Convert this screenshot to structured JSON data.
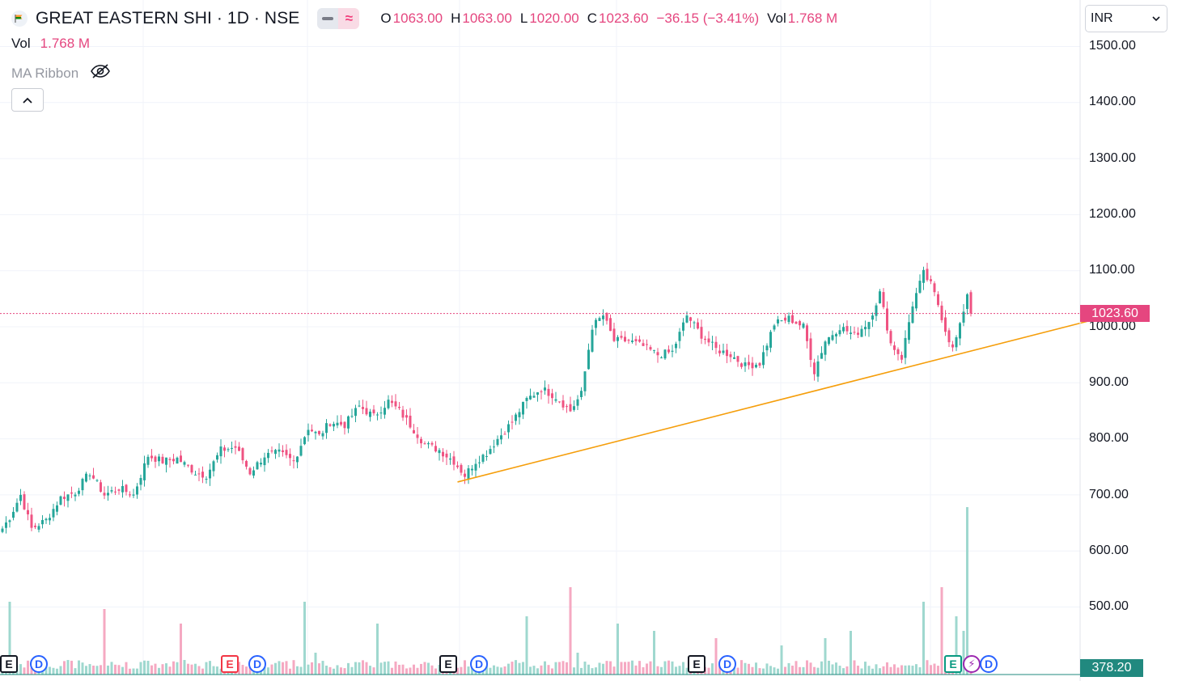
{
  "header": {
    "symbol_title": "GREAT EASTERN SHI · 1D · NSE",
    "open_label": "O",
    "open": "1063.00",
    "high_label": "H",
    "high": "1063.00",
    "low_label": "L",
    "low": "1020.00",
    "close_label": "C",
    "close": "1023.60",
    "change": "−36.15 (−3.41%)",
    "vol_label": "Vol",
    "vol": "1.768 M",
    "compare_icon": "minus-icon",
    "indicator_icon": "approx-icon"
  },
  "indicators": {
    "vol_label": "Vol",
    "vol_value": "1.768 M",
    "ma_ribbon_label": "MA Ribbon",
    "ma_ribbon_visibility_icon": "eye-off-icon",
    "collapse_icon": "chevron-up-icon"
  },
  "currency_select": {
    "value": "INR"
  },
  "price_axis": {
    "ticks": [
      "1500.00",
      "1400.00",
      "1300.00",
      "1200.00",
      "1100.00",
      "1000.00",
      "900.00",
      "800.00",
      "700.00",
      "600.00",
      "500.00"
    ],
    "last_price_tag": "1023.60",
    "volume_tag": "378.20"
  },
  "event_markers": [
    "E",
    "D",
    "E",
    "D",
    "E",
    "D",
    "E",
    "D",
    "E",
    "⚡",
    "D"
  ],
  "colors": {
    "up": "#26a69a",
    "down": "#ef5382",
    "trendline": "#f59e0b",
    "price_line": "#e5467f",
    "volume_up": "#9fd8cf",
    "volume_down": "#f5a9c2"
  },
  "chart_data": {
    "type": "candlestick",
    "title": "GREAT EASTERN SHI · 1D · NSE",
    "ylim": [
      440,
      1560
    ],
    "last_price": 1023.6,
    "close_anchors": [
      [
        0,
        640
      ],
      [
        2,
        660
      ],
      [
        5,
        700
      ],
      [
        8,
        640
      ],
      [
        12,
        655
      ],
      [
        16,
        695
      ],
      [
        20,
        705
      ],
      [
        24,
        740
      ],
      [
        28,
        700
      ],
      [
        32,
        712
      ],
      [
        36,
        700
      ],
      [
        40,
        770
      ],
      [
        44,
        760
      ],
      [
        48,
        765
      ],
      [
        53,
        740
      ],
      [
        56,
        735
      ],
      [
        60,
        780
      ],
      [
        64,
        785
      ],
      [
        68,
        740
      ],
      [
        72,
        770
      ],
      [
        76,
        775
      ],
      [
        80,
        760
      ],
      [
        84,
        820
      ],
      [
        87,
        805
      ],
      [
        90,
        830
      ],
      [
        94,
        825
      ],
      [
        98,
        858
      ],
      [
        102,
        840
      ],
      [
        106,
        867
      ],
      [
        109,
        850
      ],
      [
        112,
        825
      ],
      [
        116,
        790
      ],
      [
        120,
        780
      ],
      [
        124,
        760
      ],
      [
        127,
        735
      ],
      [
        130,
        760
      ],
      [
        133,
        775
      ],
      [
        136,
        800
      ],
      [
        140,
        830
      ],
      [
        144,
        870
      ],
      [
        148,
        890
      ],
      [
        152,
        875
      ],
      [
        156,
        850
      ],
      [
        159,
        880
      ],
      [
        162,
        1000
      ],
      [
        165,
        1020
      ],
      [
        168,
        975
      ],
      [
        172,
        975
      ],
      [
        176,
        965
      ],
      [
        180,
        950
      ],
      [
        184,
        955
      ],
      [
        188,
        1020
      ],
      [
        192,
        985
      ],
      [
        196,
        960
      ],
      [
        200,
        950
      ],
      [
        204,
        930
      ],
      [
        208,
        935
      ],
      [
        212,
        1005
      ],
      [
        216,
        1015
      ],
      [
        220,
        1000
      ],
      [
        223,
        920
      ],
      [
        226,
        975
      ],
      [
        230,
        1000
      ],
      [
        234,
        985
      ],
      [
        238,
        1010
      ],
      [
        241,
        1060
      ],
      [
        244,
        970
      ],
      [
        247,
        945
      ],
      [
        250,
        1040
      ],
      [
        253,
        1095
      ],
      [
        255,
        1075
      ],
      [
        257,
        1040
      ],
      [
        259,
        995
      ],
      [
        261,
        960
      ],
      [
        263,
        1000
      ],
      [
        265,
        1060
      ],
      [
        266,
        1023.6
      ]
    ],
    "volume_spikes": [
      [
        2,
        1
      ],
      [
        28,
        0.9
      ],
      [
        49,
        0.7
      ],
      [
        83,
        1
      ],
      [
        86,
        0.3
      ],
      [
        103,
        0.7
      ],
      [
        144,
        0.8
      ],
      [
        156,
        1.2
      ],
      [
        158,
        0.3
      ],
      [
        169,
        0.7
      ],
      [
        179,
        0.6
      ],
      [
        196,
        0.5
      ],
      [
        214,
        0.4
      ],
      [
        226,
        0.5
      ],
      [
        233,
        0.6
      ],
      [
        253,
        1
      ],
      [
        258,
        1.2
      ],
      [
        262,
        0.8
      ],
      [
        264,
        0.6
      ]
    ],
    "peak_volume_bar": {
      "index": 265,
      "height_units": 2.3
    },
    "trendline": {
      "from": [
        125,
        723
      ],
      "to": [
        300,
        1013
      ]
    }
  }
}
